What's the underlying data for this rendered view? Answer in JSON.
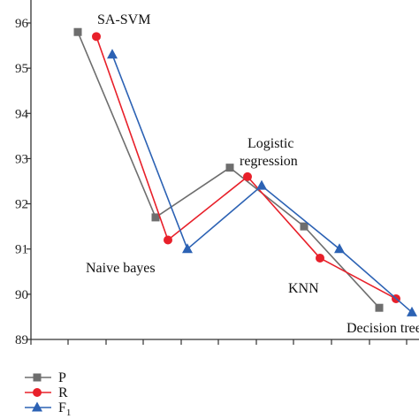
{
  "chart_data": {
    "type": "line",
    "title": "",
    "xlabel": "",
    "ylabel": "",
    "categories": [
      "SA-SVM",
      "Naive bayes",
      "Logistic regression",
      "KNN",
      "Decision tree"
    ],
    "ylim": [
      89,
      96.5
    ],
    "yticks": [
      89,
      90,
      91,
      92,
      93,
      94,
      95,
      96
    ],
    "grid": false,
    "legend_position": "bottom-left",
    "series": [
      {
        "name": "P",
        "marker": "square",
        "color": "#6e6e6e",
        "values": [
          95.8,
          91.7,
          92.8,
          91.5,
          89.7
        ]
      },
      {
        "name": "R",
        "marker": "circle",
        "color": "#e8202a",
        "values": [
          95.7,
          91.2,
          92.6,
          90.8,
          89.9
        ]
      },
      {
        "name": "F1",
        "marker": "triangle",
        "color": "#2c62b4",
        "values": [
          95.3,
          91.0,
          92.4,
          91.0,
          89.6
        ]
      }
    ],
    "annotations": [
      {
        "text": "SA-SVM"
      },
      {
        "text": "Logistic"
      },
      {
        "text": "regression"
      },
      {
        "text": "Naive bayes"
      },
      {
        "text": "KNN"
      },
      {
        "text": "Decision tree"
      }
    ]
  }
}
